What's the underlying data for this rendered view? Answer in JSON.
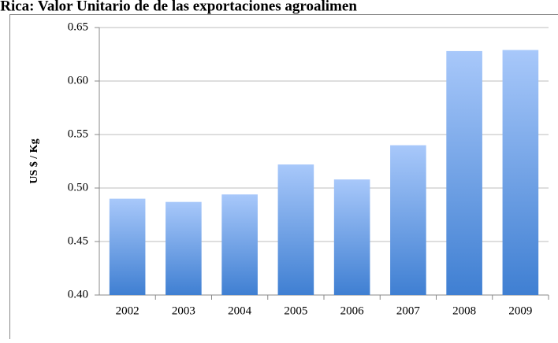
{
  "chart_data": {
    "type": "bar",
    "title": "a Rica: Valor Unitario de de las exportaciones agroalimen",
    "y_label": "US $ / Kg",
    "categories": [
      "2002",
      "2003",
      "2004",
      "2005",
      "2006",
      "2007",
      "2008",
      "2009"
    ],
    "values": [
      0.49,
      0.487,
      0.494,
      0.522,
      0.508,
      0.54,
      0.628,
      0.629
    ],
    "color": "#3f7fd2",
    "ylim": [
      0.4,
      0.65
    ],
    "yticks": [
      {
        "value": 0.4,
        "label": "0.40"
      },
      {
        "value": 0.45,
        "label": "0.45"
      },
      {
        "value": 0.5,
        "label": "0.50"
      },
      {
        "value": 0.55,
        "label": "0.55"
      },
      {
        "value": 0.6,
        "label": "0.60"
      },
      {
        "value": 0.65,
        "label": "0.65"
      }
    ],
    "grid": true
  }
}
